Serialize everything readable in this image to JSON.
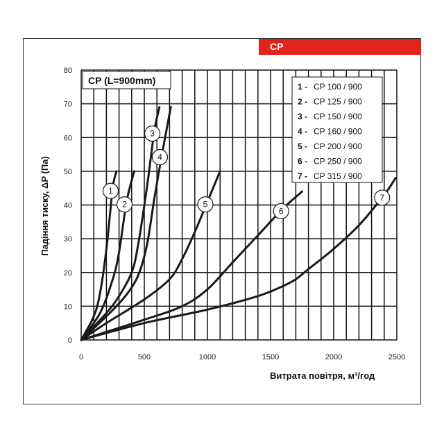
{
  "header": {
    "tag": "CP",
    "tag_color": "#e2231a"
  },
  "chart_data": {
    "type": "line",
    "title": "CP (L=900mm)",
    "xlabel": "Витрата повітря, м³/год",
    "ylabel": "Падіння тиску, ΔP (Па)",
    "xlim": [
      0,
      2500
    ],
    "ylim": [
      0,
      80
    ],
    "x_ticks": [
      0,
      500,
      1000,
      1500,
      2000,
      2500
    ],
    "y_ticks": [
      0,
      10,
      20,
      30,
      40,
      50,
      60,
      70,
      80
    ],
    "x_minor_step": 100,
    "grid": true,
    "legend_position": "top-right",
    "series": [
      {
        "id": "1",
        "name": "CP 100 / 900",
        "points": [
          [
            0,
            0
          ],
          [
            100,
            7
          ],
          [
            150,
            14
          ],
          [
            200,
            27
          ],
          [
            250,
            45
          ],
          [
            280,
            50
          ]
        ]
      },
      {
        "id": "2",
        "name": "CP 125 / 900",
        "points": [
          [
            0,
            0
          ],
          [
            150,
            8
          ],
          [
            250,
            18
          ],
          [
            300,
            26
          ],
          [
            360,
            41
          ],
          [
            420,
            50
          ]
        ]
      },
      {
        "id": "3",
        "name": "CP 150 / 900",
        "points": [
          [
            0,
            0
          ],
          [
            200,
            8
          ],
          [
            300,
            13
          ],
          [
            400,
            20
          ],
          [
            450,
            28
          ],
          [
            520,
            45
          ],
          [
            580,
            62
          ],
          [
            620,
            69
          ]
        ]
      },
      {
        "id": "4",
        "name": "CP 160 / 900",
        "points": [
          [
            0,
            0
          ],
          [
            200,
            7
          ],
          [
            350,
            13
          ],
          [
            450,
            19
          ],
          [
            520,
            28
          ],
          [
            580,
            42
          ],
          [
            640,
            55
          ],
          [
            710,
            69
          ]
        ]
      },
      {
        "id": "5",
        "name": "CP 200 / 900",
        "points": [
          [
            0,
            0
          ],
          [
            200,
            5
          ],
          [
            500,
            12
          ],
          [
            700,
            18
          ],
          [
            800,
            24
          ],
          [
            900,
            32
          ],
          [
            1000,
            41
          ],
          [
            1100,
            50
          ]
        ]
      },
      {
        "id": "6",
        "name": "CP 250 / 900",
        "points": [
          [
            0,
            0
          ],
          [
            500,
            6
          ],
          [
            800,
            10
          ],
          [
            1000,
            15
          ],
          [
            1200,
            23
          ],
          [
            1400,
            31
          ],
          [
            1600,
            39
          ],
          [
            1750,
            44
          ]
        ]
      },
      {
        "id": "7",
        "name": "CP 315 / 900",
        "points": [
          [
            0,
            0
          ],
          [
            500,
            5
          ],
          [
            1000,
            9
          ],
          [
            1400,
            13
          ],
          [
            1600,
            16
          ],
          [
            1700,
            18
          ],
          [
            1800,
            21
          ],
          [
            2000,
            27
          ],
          [
            2200,
            34
          ],
          [
            2400,
            43
          ],
          [
            2490,
            48
          ]
        ]
      }
    ]
  }
}
